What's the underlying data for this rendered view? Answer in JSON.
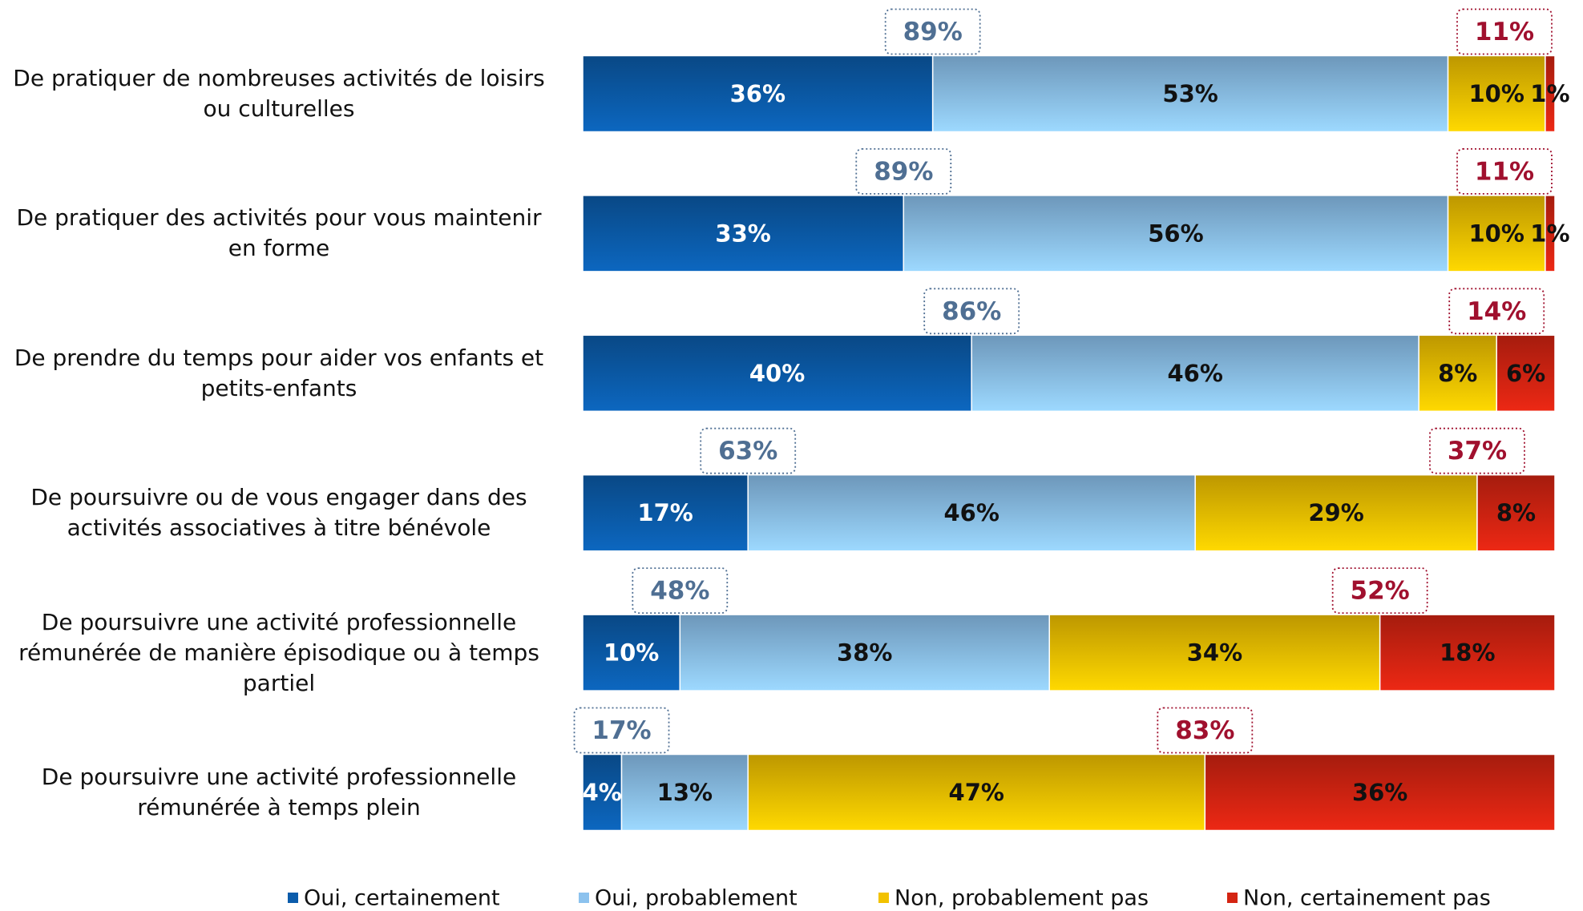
{
  "chart_data": {
    "type": "stacked-bar-horizontal",
    "categories": [
      "De pratiquer de nombreuses activités de loisirs ou culturelles",
      "De pratiquer des activités pour vous maintenir en forme",
      "De prendre du temps pour aider vos enfants et petits-enfants",
      "De poursuivre ou de vous engager dans des activités associatives à titre bénévole",
      "De poursuivre une activité professionnelle rémunérée de manière épisodique ou à temps partiel",
      "De poursuivre une activité professionnelle rémunérée à temps plein"
    ],
    "series": [
      {
        "name": "Oui, certainement",
        "color": "#0b5cab",
        "values": [
          36,
          33,
          40,
          17,
          10,
          4
        ],
        "value_labels": [
          "36%",
          "33%",
          "40%",
          "17%",
          "10%",
          "4%"
        ]
      },
      {
        "name": "Oui, probablement",
        "color": "#8cc2ee",
        "values": [
          53,
          56,
          46,
          46,
          38,
          13
        ],
        "value_labels": [
          "53%",
          "56%",
          "46%",
          "46%",
          "38%",
          "13%"
        ]
      },
      {
        "name": "Non, probablement pas",
        "color": "#f2c200",
        "values": [
          10,
          10,
          8,
          29,
          34,
          47
        ],
        "value_labels": [
          "10%",
          "10%",
          "8%",
          "29%",
          "34%",
          "47%"
        ]
      },
      {
        "name": "Non, certainement pas",
        "color": "#d42412",
        "values": [
          1,
          1,
          6,
          8,
          18,
          36
        ],
        "value_labels": [
          "1%",
          "1%",
          "6%",
          "8%",
          "18%",
          "36%"
        ]
      }
    ],
    "yes_totals": {
      "color": "#4f6f93",
      "values": [
        89,
        89,
        86,
        63,
        48,
        17
      ],
      "value_labels": [
        "89%",
        "89%",
        "86%",
        "63%",
        "48%",
        "17%"
      ]
    },
    "no_totals": {
      "color": "#a0102e",
      "values": [
        11,
        11,
        14,
        37,
        52,
        83
      ],
      "value_labels": [
        "11%",
        "11%",
        "14%",
        "37%",
        "52%",
        "83%"
      ]
    },
    "xlim": [
      0,
      100
    ],
    "legend": "bottom"
  }
}
